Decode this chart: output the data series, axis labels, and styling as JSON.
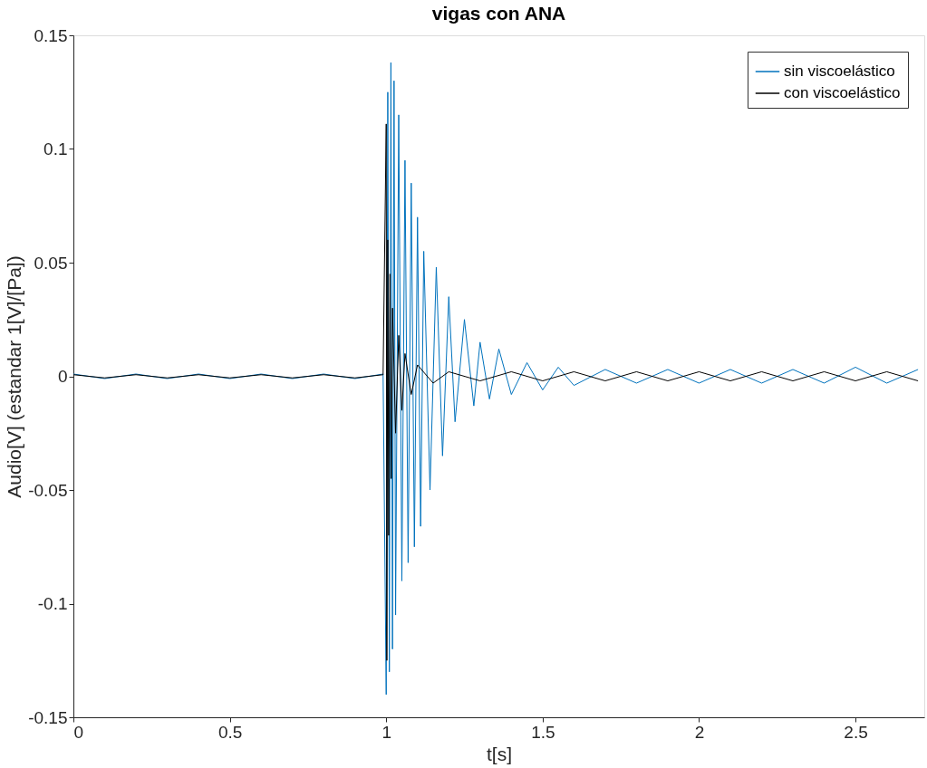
{
  "chart_data": {
    "type": "line",
    "title": "vigas con ANA",
    "xlabel": "t[s]",
    "ylabel": "Audio[V] (estandar 1[V]/[Pa])",
    "xlim": [
      0,
      2.72
    ],
    "ylim": [
      -0.15,
      0.15
    ],
    "xticks": [
      0,
      0.5,
      1,
      1.5,
      2,
      2.5
    ],
    "yticks": [
      -0.15,
      -0.1,
      -0.05,
      0,
      0.05,
      0.1,
      0.15
    ],
    "grid": false,
    "legend": "top right",
    "line_style": "solid",
    "marker": "none",
    "series": [
      {
        "name": "sin viscoelástico",
        "color": "#0072bd",
        "x": [
          0,
          0.1,
          0.2,
          0.3,
          0.4,
          0.5,
          0.6,
          0.7,
          0.8,
          0.9,
          0.99,
          1.0,
          1.005,
          1.01,
          1.015,
          1.02,
          1.025,
          1.03,
          1.04,
          1.05,
          1.06,
          1.07,
          1.08,
          1.09,
          1.1,
          1.11,
          1.12,
          1.14,
          1.16,
          1.18,
          1.2,
          1.22,
          1.25,
          1.28,
          1.3,
          1.33,
          1.36,
          1.4,
          1.45,
          1.5,
          1.55,
          1.6,
          1.7,
          1.8,
          1.9,
          2.0,
          2.1,
          2.2,
          2.3,
          2.4,
          2.5,
          2.6,
          2.7
        ],
        "values": [
          0.001,
          -0.001,
          0.001,
          -0.001,
          0.001,
          -0.001,
          0.001,
          -0.001,
          0.001,
          -0.001,
          0.001,
          -0.14,
          0.125,
          -0.13,
          0.138,
          -0.12,
          0.13,
          -0.105,
          0.115,
          -0.09,
          0.095,
          -0.082,
          0.085,
          -0.075,
          0.07,
          -0.066,
          0.055,
          -0.05,
          0.048,
          -0.035,
          0.035,
          -0.02,
          0.025,
          -0.013,
          0.015,
          -0.01,
          0.012,
          -0.008,
          0.006,
          -0.006,
          0.004,
          -0.004,
          0.003,
          -0.003,
          0.003,
          -0.003,
          0.003,
          -0.003,
          0.003,
          -0.003,
          0.004,
          -0.003,
          0.003
        ]
      },
      {
        "name": "con viscoelástico",
        "color": "#000000",
        "x": [
          0,
          0.1,
          0.2,
          0.3,
          0.4,
          0.5,
          0.6,
          0.7,
          0.8,
          0.9,
          0.99,
          1.0,
          1.002,
          1.005,
          1.008,
          1.012,
          1.016,
          1.02,
          1.03,
          1.04,
          1.05,
          1.06,
          1.08,
          1.1,
          1.15,
          1.2,
          1.3,
          1.4,
          1.5,
          1.6,
          1.7,
          1.8,
          1.9,
          2.0,
          2.1,
          2.2,
          2.3,
          2.4,
          2.5,
          2.6,
          2.7
        ],
        "values": [
          0.0007,
          -0.0007,
          0.0007,
          -0.0007,
          0.0007,
          -0.0007,
          0.0007,
          -0.0007,
          0.0007,
          -0.0007,
          0.0007,
          0.111,
          -0.125,
          0.06,
          -0.07,
          0.045,
          -0.045,
          0.03,
          -0.025,
          0.018,
          -0.015,
          0.01,
          -0.008,
          0.005,
          -0.003,
          0.002,
          -0.002,
          0.002,
          -0.002,
          0.002,
          -0.002,
          0.002,
          -0.002,
          0.002,
          -0.002,
          0.002,
          -0.002,
          0.002,
          -0.002,
          0.002,
          -0.002
        ]
      }
    ]
  }
}
